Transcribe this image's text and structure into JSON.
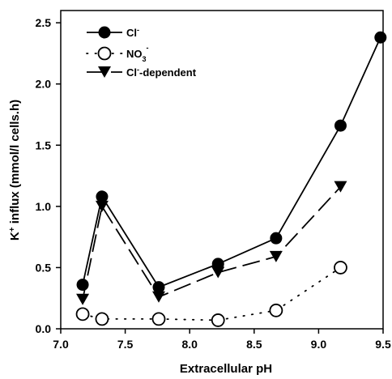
{
  "chart_data": {
    "type": "line",
    "title": "",
    "xlabel": "Extracellular pH",
    "ylabel_parts": {
      "k": "K",
      "plus": "+",
      "rest": " influx (mmol/l cells.h)"
    },
    "xlim": [
      7.0,
      9.5
    ],
    "ylim": [
      0.0,
      2.6
    ],
    "xticks": [
      "7.0",
      "7.5",
      "8.0",
      "8.5",
      "9.0",
      "9.5"
    ],
    "yticks": [
      "0.0",
      "0.5",
      "1.0",
      "1.5",
      "2.0",
      "2.5"
    ],
    "legend_position": "top-left",
    "grid": false,
    "series": [
      {
        "name": "Cl",
        "name_sup": "-",
        "marker": "filled-circle",
        "line": "solid",
        "x": [
          7.17,
          7.32,
          7.76,
          8.22,
          8.67,
          9.17,
          9.48
        ],
        "y": [
          0.36,
          1.08,
          0.34,
          0.53,
          0.74,
          1.66,
          2.38
        ]
      },
      {
        "name": "NO",
        "name_sub": "3",
        "name_sup": "-",
        "marker": "open-circle",
        "line": "dotted",
        "x": [
          7.17,
          7.32,
          7.76,
          8.22,
          8.67,
          9.17
        ],
        "y": [
          0.12,
          0.08,
          0.08,
          0.07,
          0.15,
          0.5
        ]
      },
      {
        "name_pre": "Cl",
        "name_sup": "-",
        "name": "-dependent",
        "marker": "filled-triangle-down",
        "line": "dashed",
        "x": [
          7.17,
          7.32,
          7.76,
          8.22,
          8.67,
          9.17
        ],
        "y": [
          0.24,
          1.0,
          0.26,
          0.46,
          0.59,
          1.16
        ]
      }
    ]
  }
}
